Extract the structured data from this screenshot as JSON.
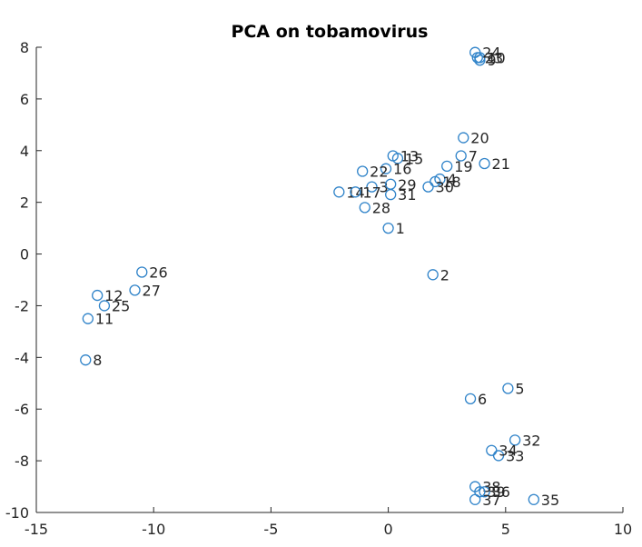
{
  "chart_data": {
    "type": "scatter",
    "title": "PCA on tobamovirus",
    "xlabel": "",
    "ylabel": "",
    "xlim": [
      -15,
      10
    ],
    "ylim": [
      -10,
      8
    ],
    "xticks": [
      "-15",
      "-10",
      "-5",
      "0",
      "5",
      "10"
    ],
    "yticks": [
      "-10",
      "-8",
      "-6",
      "-4",
      "-2",
      "0",
      "2",
      "4",
      "6",
      "8"
    ],
    "grid": false,
    "marker_color": "#2f83c9",
    "points": [
      {
        "label": "1",
        "x": 0.0,
        "y": 1.0
      },
      {
        "label": "2",
        "x": 1.9,
        "y": -0.8
      },
      {
        "label": "3",
        "x": -0.7,
        "y": 2.6
      },
      {
        "label": "4",
        "x": 2.2,
        "y": 2.9
      },
      {
        "label": "5",
        "x": 5.1,
        "y": -5.2
      },
      {
        "label": "6",
        "x": 3.5,
        "y": -5.6
      },
      {
        "label": "7",
        "x": 3.1,
        "y": 3.8
      },
      {
        "label": "8",
        "x": -12.9,
        "y": -4.1
      },
      {
        "label": "9",
        "x": 3.9,
        "y": 7.5
      },
      {
        "label": "10",
        "x": 3.9,
        "y": 7.6
      },
      {
        "label": "11",
        "x": -12.8,
        "y": -2.5
      },
      {
        "label": "12",
        "x": -12.4,
        "y": -1.6
      },
      {
        "label": "13",
        "x": 0.2,
        "y": 3.8
      },
      {
        "label": "14",
        "x": -2.1,
        "y": 2.4
      },
      {
        "label": "15",
        "x": 0.4,
        "y": 3.7
      },
      {
        "label": "16",
        "x": -0.1,
        "y": 3.3
      },
      {
        "label": "17",
        "x": -1.4,
        "y": 2.4
      },
      {
        "label": "18",
        "x": 2.0,
        "y": 2.8
      },
      {
        "label": "19",
        "x": 2.5,
        "y": 3.4
      },
      {
        "label": "20",
        "x": 3.2,
        "y": 4.5
      },
      {
        "label": "21",
        "x": 4.1,
        "y": 3.5
      },
      {
        "label": "22",
        "x": -1.1,
        "y": 3.2
      },
      {
        "label": "23",
        "x": 3.8,
        "y": 7.6
      },
      {
        "label": "24",
        "x": 3.7,
        "y": 7.8
      },
      {
        "label": "25",
        "x": -12.1,
        "y": -2.0
      },
      {
        "label": "26",
        "x": -10.5,
        "y": -0.7
      },
      {
        "label": "27",
        "x": -10.8,
        "y": -1.4
      },
      {
        "label": "28",
        "x": -1.0,
        "y": 1.8
      },
      {
        "label": "29",
        "x": 0.1,
        "y": 2.7
      },
      {
        "label": "30",
        "x": 1.7,
        "y": 2.6
      },
      {
        "label": "31",
        "x": 0.1,
        "y": 2.3
      },
      {
        "label": "32",
        "x": 5.4,
        "y": -7.2
      },
      {
        "label": "33",
        "x": 4.7,
        "y": -7.8
      },
      {
        "label": "34",
        "x": 4.4,
        "y": -7.6
      },
      {
        "label": "35",
        "x": 6.2,
        "y": -9.5
      },
      {
        "label": "36",
        "x": 4.1,
        "y": -9.2
      },
      {
        "label": "37",
        "x": 3.7,
        "y": -9.5
      },
      {
        "label": "38",
        "x": 3.7,
        "y": -9.0
      },
      {
        "label": "39",
        "x": 3.9,
        "y": -9.2
      }
    ]
  }
}
